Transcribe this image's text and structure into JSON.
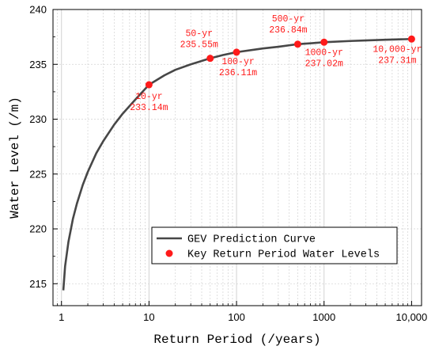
{
  "chart_data": {
    "type": "line",
    "xscale": "log",
    "xlim": [
      0.8,
      13000
    ],
    "ylim": [
      213,
      240
    ],
    "x_ticks": [
      1,
      10,
      100,
      1000,
      10000
    ],
    "x_tick_labels": [
      "1",
      "10",
      "100",
      "1000",
      "10,000"
    ],
    "y_ticks": [
      215,
      220,
      225,
      230,
      235,
      240
    ],
    "y_tick_labels": [
      "215",
      "220",
      "225",
      "230",
      "235",
      "240"
    ],
    "xlabel": "Return Period (/years)",
    "ylabel": "Water Level (/m)",
    "grid": "on",
    "legend_position": "bottom-right",
    "colors": {
      "curve": "#474747",
      "points": "#ff1a1a",
      "grid": "#d2d2d2"
    },
    "series": [
      {
        "name": "GEV Prediction Curve",
        "kind": "line",
        "x": [
          1.05,
          1.1,
          1.2,
          1.35,
          1.5,
          1.75,
          2,
          2.5,
          3,
          4,
          5,
          7,
          10,
          15,
          20,
          30,
          50,
          70,
          100,
          200,
          300,
          500,
          700,
          1000,
          2000,
          3000,
          5000,
          10000
        ],
        "y": [
          214.4,
          216.6,
          218.8,
          220.9,
          222.3,
          224.0,
          225.2,
          226.9,
          228.0,
          229.5,
          230.5,
          231.8,
          233.14,
          234.0,
          234.5,
          235.0,
          235.55,
          235.85,
          236.11,
          236.45,
          236.6,
          236.84,
          236.92,
          237.02,
          237.13,
          237.18,
          237.24,
          237.31
        ]
      },
      {
        "name": "Key Return Period Water Levels",
        "kind": "scatter",
        "x": [
          10,
          50,
          100,
          500,
          1000,
          10000
        ],
        "y": [
          233.14,
          235.55,
          236.11,
          236.84,
          237.02,
          237.31
        ]
      }
    ],
    "annotations": [
      {
        "x": 10,
        "line1": "10-yr",
        "line2": "233.14m"
      },
      {
        "x": 50,
        "line1": "50-yr",
        "line2": "235.55m"
      },
      {
        "x": 100,
        "line1": "100-yr",
        "line2": "236.11m"
      },
      {
        "x": 500,
        "line1": "500-yr",
        "line2": "236.84m"
      },
      {
        "x": 1000,
        "line1": "1000-yr",
        "line2": "237.02m"
      },
      {
        "x": 10000,
        "line1": "10,000-yr",
        "line2": "237.31m"
      }
    ]
  }
}
